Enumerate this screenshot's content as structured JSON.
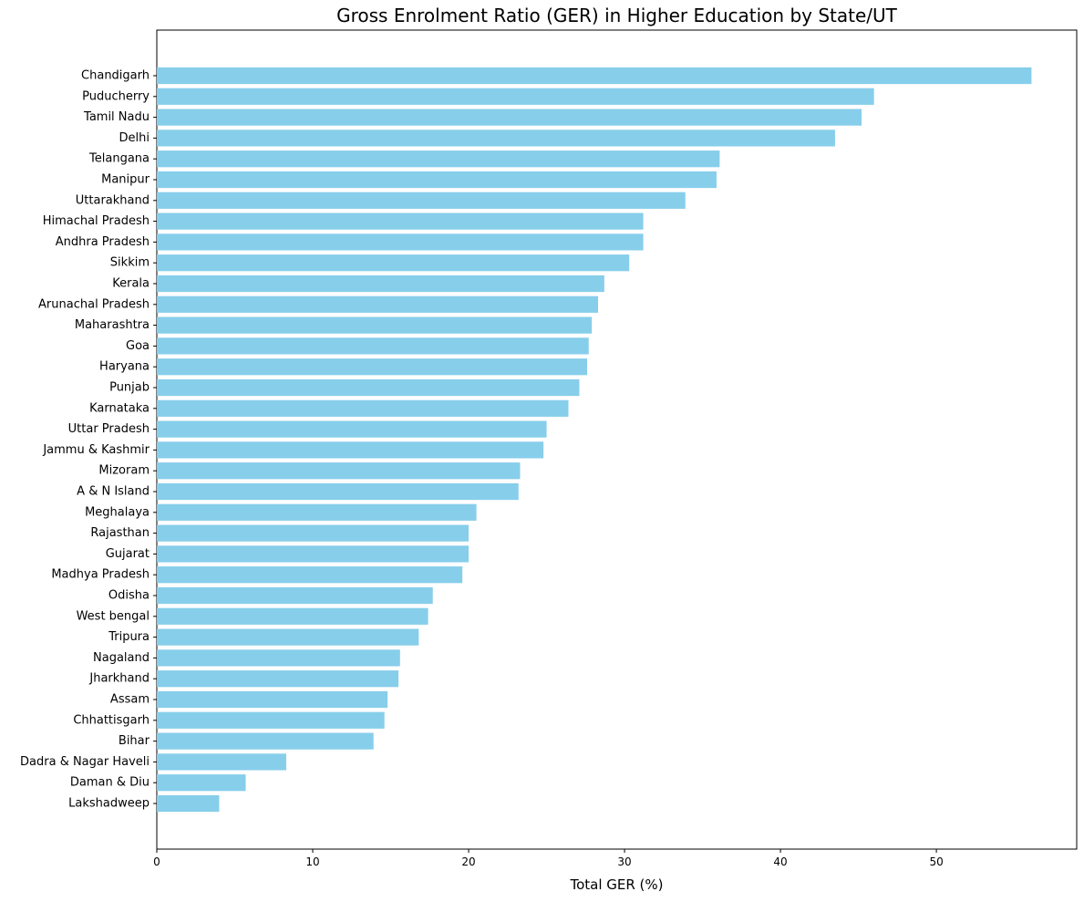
{
  "chart_data": {
    "type": "bar",
    "orientation": "horizontal",
    "title": "Gross Enrolment Ratio (GER) in Higher Education by State/UT",
    "xlabel": "Total GER (%)",
    "ylabel": "",
    "xlim": [
      0,
      59
    ],
    "xticks": [
      "0",
      "10",
      "20",
      "30",
      "40",
      "50"
    ],
    "bar_color": "#87CEEB",
    "grid": false,
    "categories": [
      "Chandigarh",
      "Puducherry",
      "Tamil Nadu",
      "Delhi",
      "Telangana",
      "Manipur",
      "Uttarakhand",
      "Himachal Pradesh",
      "Andhra Pradesh",
      "Sikkim",
      "Kerala",
      "Arunachal Pradesh",
      "Maharashtra",
      "Goa",
      "Haryana",
      "Punjab",
      "Karnataka",
      "Uttar Pradesh",
      "Jammu & Kashmir",
      "Mizoram",
      "A & N Island",
      "Meghalaya",
      "Rajasthan",
      "Gujarat",
      "Madhya Pradesh",
      "Odisha",
      "West bengal",
      "Tripura",
      "Nagaland",
      "Jharkhand",
      "Assam",
      "Chhattisgarh",
      "Bihar",
      "Dadra & Nagar Haveli",
      "Daman & Diu",
      "Lakshadweep"
    ],
    "values": [
      56.1,
      46.0,
      45.2,
      43.5,
      36.1,
      35.9,
      33.9,
      31.2,
      31.2,
      30.3,
      28.7,
      28.3,
      27.9,
      27.7,
      27.6,
      27.1,
      26.4,
      25.0,
      24.8,
      23.3,
      23.2,
      20.5,
      20.0,
      20.0,
      19.6,
      17.7,
      17.4,
      16.8,
      15.6,
      15.5,
      14.8,
      14.6,
      13.9,
      8.3,
      5.7,
      4.0
    ]
  }
}
